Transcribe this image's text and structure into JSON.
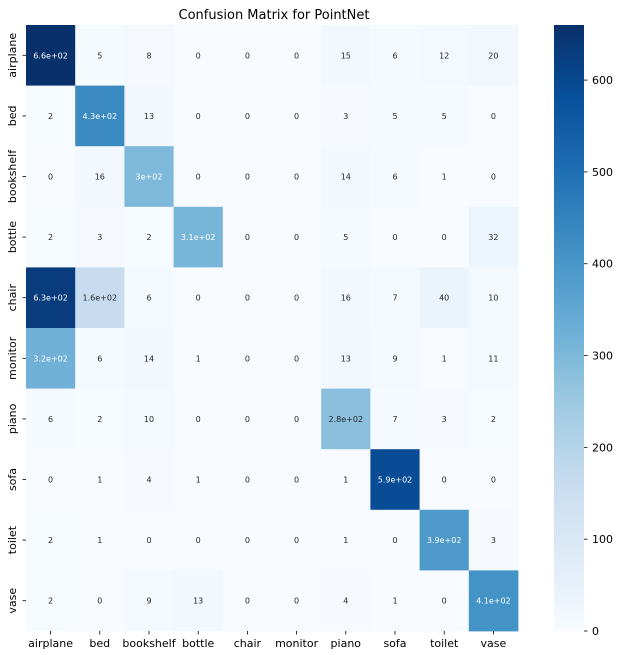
{
  "chart_data": {
    "type": "heatmap",
    "title": "Confusion Matrix for PointNet",
    "xlabel": "",
    "ylabel": "",
    "x_categories": [
      "airplane",
      "bed",
      "bookshelf",
      "bottle",
      "chair",
      "monitor",
      "piano",
      "sofa",
      "toilet",
      "vase"
    ],
    "y_categories": [
      "airplane",
      "bed",
      "bookshelf",
      "bottle",
      "chair",
      "monitor",
      "piano",
      "sofa",
      "toilet",
      "vase"
    ],
    "values": [
      [
        660,
        5,
        8,
        0,
        0,
        0,
        15,
        6,
        12,
        20
      ],
      [
        2,
        430,
        13,
        0,
        0,
        0,
        3,
        5,
        5,
        0
      ],
      [
        0,
        16,
        300,
        0,
        0,
        0,
        14,
        6,
        1,
        0
      ],
      [
        2,
        3,
        2,
        310,
        0,
        0,
        5,
        0,
        0,
        32
      ],
      [
        630,
        160,
        6,
        0,
        0,
        0,
        16,
        7,
        40,
        10
      ],
      [
        320,
        6,
        14,
        1,
        0,
        0,
        13,
        9,
        1,
        11
      ],
      [
        6,
        2,
        10,
        0,
        0,
        0,
        280,
        7,
        3,
        2
      ],
      [
        0,
        1,
        4,
        1,
        0,
        0,
        1,
        590,
        0,
        0
      ],
      [
        2,
        1,
        0,
        0,
        0,
        0,
        1,
        0,
        390,
        3
      ],
      [
        2,
        0,
        9,
        13,
        0,
        0,
        4,
        1,
        0,
        410
      ]
    ],
    "cell_labels": [
      [
        "6.6e+02",
        "5",
        "8",
        "0",
        "0",
        "0",
        "15",
        "6",
        "12",
        "20"
      ],
      [
        "2",
        "4.3e+02",
        "13",
        "0",
        "0",
        "0",
        "3",
        "5",
        "5",
        "0"
      ],
      [
        "0",
        "16",
        "3e+02",
        "0",
        "0",
        "0",
        "14",
        "6",
        "1",
        "0"
      ],
      [
        "2",
        "3",
        "2",
        "3.1e+02",
        "0",
        "0",
        "5",
        "0",
        "0",
        "32"
      ],
      [
        "6.3e+02",
        "1.6e+02",
        "6",
        "0",
        "0",
        "0",
        "16",
        "7",
        "40",
        "10"
      ],
      [
        "3.2e+02",
        "6",
        "14",
        "1",
        "0",
        "0",
        "13",
        "9",
        "1",
        "11"
      ],
      [
        "6",
        "2",
        "10",
        "0",
        "0",
        "0",
        "2.8e+02",
        "7",
        "3",
        "2"
      ],
      [
        "0",
        "1",
        "4",
        "1",
        "0",
        "0",
        "1",
        "5.9e+02",
        "0",
        "0"
      ],
      [
        "2",
        "1",
        "0",
        "0",
        "0",
        "0",
        "1",
        "0",
        "3.9e+02",
        "3"
      ],
      [
        "2",
        "0",
        "9",
        "13",
        "0",
        "0",
        "4",
        "1",
        "0",
        "4.1e+02"
      ]
    ],
    "colorbar": {
      "min": 0,
      "max": 660,
      "ticks": [
        0,
        100,
        200,
        300,
        400,
        500,
        600
      ],
      "colormap": "Blues",
      "low_color": "#f7fbff",
      "high_color": "#08306b"
    },
    "grid": false
  }
}
